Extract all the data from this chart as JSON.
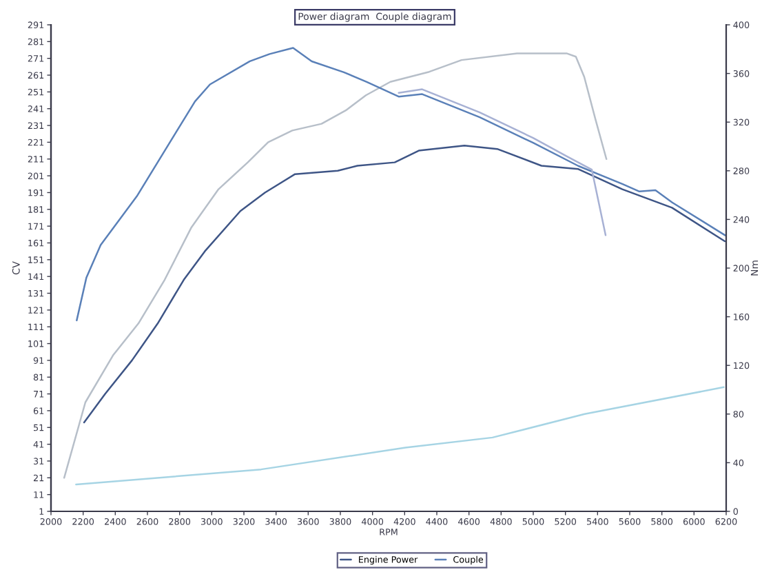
{
  "chart_data": {
    "type": "line",
    "title": "Power diagram  Couple diagram",
    "xlabel": "RPM",
    "ylabel": "CV",
    "y2label": "Nm",
    "xlim": [
      2000,
      6200
    ],
    "xticks": [
      2000,
      2200,
      2400,
      2600,
      2800,
      3000,
      3200,
      3400,
      3600,
      3800,
      4000,
      4200,
      4400,
      4600,
      4800,
      5000,
      5200,
      5400,
      5600,
      5800,
      6000,
      6200
    ],
    "ylim": [
      1,
      291
    ],
    "yticks": [
      1,
      11,
      21,
      31,
      41,
      51,
      61,
      71,
      81,
      91,
      101,
      111,
      121,
      131,
      141,
      151,
      161,
      171,
      181,
      191,
      201,
      211,
      221,
      231,
      241,
      251,
      261,
      271,
      281,
      291
    ],
    "y2lim": [
      0,
      400
    ],
    "y2ticks": [
      0,
      40,
      80,
      120,
      160,
      200,
      240,
      280,
      320,
      360,
      400
    ],
    "legend": "bottom",
    "grid": false,
    "marker": "none",
    "line_style": "solid",
    "series": [
      {
        "name": "Engine Power",
        "color": "#3e5586",
        "x": [
          2206,
          2337,
          2504,
          2664,
          2826,
          2957,
          3178,
          3331,
          3518,
          3784,
          3906,
          4138,
          4288,
          4572,
          4776,
          5051,
          5280,
          5554,
          5863,
          6191
        ],
        "values": [
          54,
          71,
          91,
          113,
          139,
          156,
          180,
          191,
          202,
          204,
          207,
          209,
          216,
          219,
          217,
          207,
          205,
          193,
          182,
          162
        ]
      },
      {
        "name": "Couple",
        "axis": "y2",
        "color": "#5a80b8",
        "x": [
          2160,
          2220,
          2309,
          2534,
          2696,
          2896,
          2989,
          3237,
          3360,
          3506,
          3622,
          3822,
          3964,
          4163,
          4309,
          4667,
          4999,
          5280,
          5556,
          5660,
          5760,
          5864,
          6193
        ],
        "values": [
          157,
          192,
          219,
          259,
          294,
          337,
          351,
          370,
          376,
          381,
          370,
          361,
          353,
          341,
          343,
          324,
          303,
          284,
          269,
          263,
          264,
          254,
          227
        ]
      },
      {
        "color": "#b7bfc9",
        "x": [
          2082,
          2214,
          2386,
          2544,
          2707,
          2872,
          3042,
          3224,
          3351,
          3501,
          3683,
          3834,
          3959,
          4111,
          4353,
          4554,
          4899,
          5207,
          5265,
          5317,
          5386,
          5455
        ],
        "values": [
          21,
          66,
          94,
          113,
          139,
          170,
          193,
          209,
          221,
          228,
          232,
          240,
          249,
          257,
          263,
          270,
          274,
          274,
          272,
          260,
          235,
          211
        ]
      },
      {
        "axis": "y2",
        "color": "#a7b1d4",
        "x": [
          4163,
          4309,
          4667,
          4999,
          5207,
          5364,
          5450
        ],
        "values": [
          344,
          347,
          328,
          307,
          292,
          281,
          227
        ]
      },
      {
        "color": "#a6d4e4",
        "x": [
          2156,
          3307,
          4205,
          4746,
          5320,
          6185
        ],
        "values": [
          17,
          26,
          39,
          45,
          59,
          75
        ]
      }
    ]
  }
}
